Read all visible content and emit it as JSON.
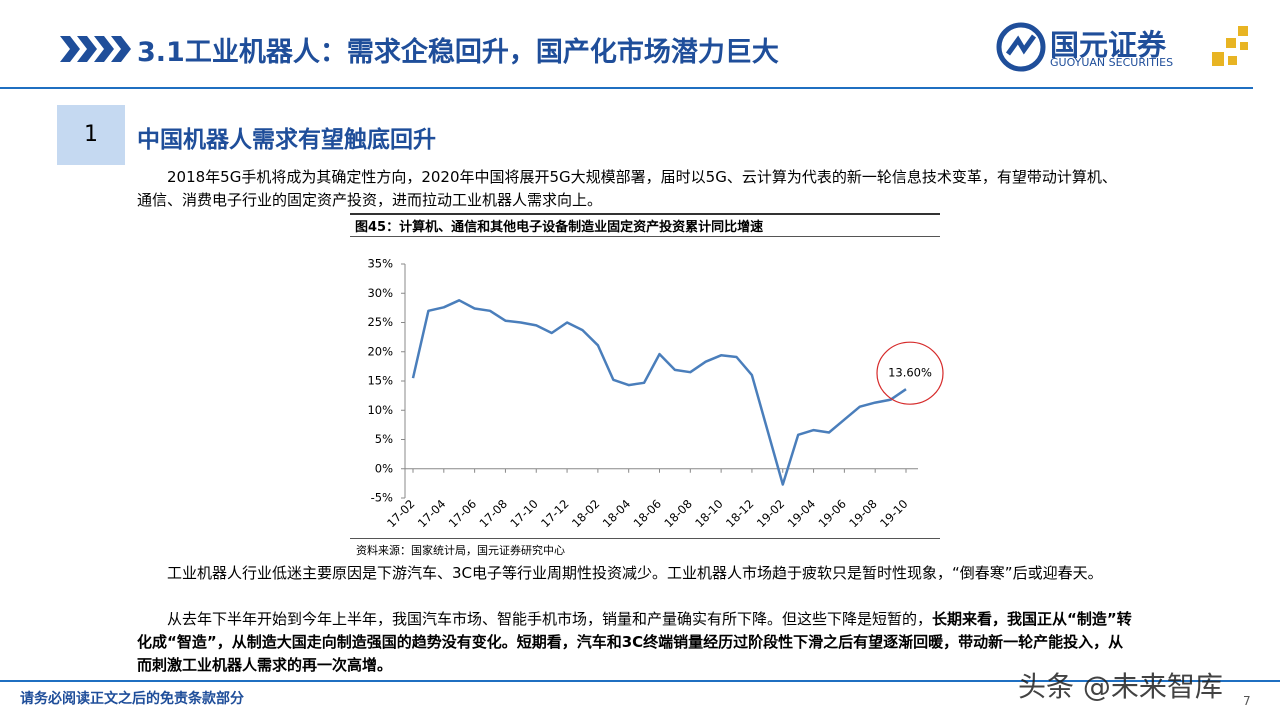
{
  "header": {
    "title": "3.1工业机器人：需求企稳回升，国产化市场潜力巨大",
    "logo_name": "国元证券",
    "logo_en": "GUOYUAN SECURITIES"
  },
  "section": {
    "number": "1",
    "title": "中国机器人需求有望触底回升"
  },
  "intro": "2018年5G手机将成为其确定性方向，2020年中国将展开5G大规模部署，届时以5G、云计算为代表的新一轮信息技术变革，有望带动计算机、通信、消费电子行业的固定资产投资，进而拉动工业机器人需求向上。",
  "figure": {
    "caption": "图45：计算机、通信和其他电子设备制造业固定资产投资累计同比增速",
    "source": "资料来源：国家统计局，国元证券研究中心"
  },
  "chart_data": {
    "type": "line",
    "color": "#4a7ebb",
    "annotation": "13.60%",
    "annotation_color": "#d62b2b",
    "categories": [
      "17-02",
      null,
      "17-04",
      null,
      "17-06",
      null,
      "17-08",
      null,
      "17-10",
      null,
      "17-12",
      null,
      "18-02",
      null,
      "18-04",
      null,
      "18-06",
      null,
      "18-08",
      null,
      "18-10",
      null,
      "18-12",
      null,
      "19-02",
      null,
      "19-04",
      null,
      "19-06",
      null,
      "19-08",
      null,
      "19-10"
    ],
    "values": [
      15.5,
      27,
      27.6,
      28.8,
      27.4,
      27,
      25.3,
      25,
      24.5,
      23.2,
      25,
      23.7,
      21.1,
      15.2,
      14.3,
      14.7,
      19.6,
      16.9,
      16.5,
      18.3,
      19.4,
      19.1,
      16,
      6.7,
      -2.7,
      5.8,
      6.6,
      6.2,
      8.4,
      10.6,
      11.3,
      11.8,
      13.6
    ],
    "ylim": [
      -5,
      35
    ],
    "yticks": [
      {
        "value": -5,
        "label": "-5%"
      },
      {
        "value": 0,
        "label": "0%"
      },
      {
        "value": 5,
        "label": "5%"
      },
      {
        "value": 10,
        "label": "10%"
      },
      {
        "value": 15,
        "label": "15%"
      },
      {
        "value": 20,
        "label": "20%"
      },
      {
        "value": 25,
        "label": "25%"
      },
      {
        "value": 30,
        "label": "30%"
      },
      {
        "value": 35,
        "label": "35%"
      }
    ]
  },
  "paragraphs": [
    {
      "text": "工业机器人行业低迷主要原因是下游汽车、3C电子等行业周期性投资减少。工业机器人市场趋于疲软只是暂时性现象，“倒春寒”后或迎春天。"
    },
    {
      "text": "从去年下半年开始到今年上半年，我国汽车市场、智能手机市场，销量和产量确实有所下降。但这些下降是短暂的，",
      "bold": "长期来看，我国正从“制造”转化成“智造”，从制造大国走向制造强国的趋势没有变化。短期看，汽车和3C终端销量经历过阶段性下滑之后有望逐渐回暖，带动新一轮产能投入，从而刺激工业机器人需求的再一次高增。"
    }
  ],
  "footer": {
    "disclaimer": "请务必阅读正文之后的免责条款部分",
    "page": "7"
  },
  "watermark": "头条 @未来智库"
}
